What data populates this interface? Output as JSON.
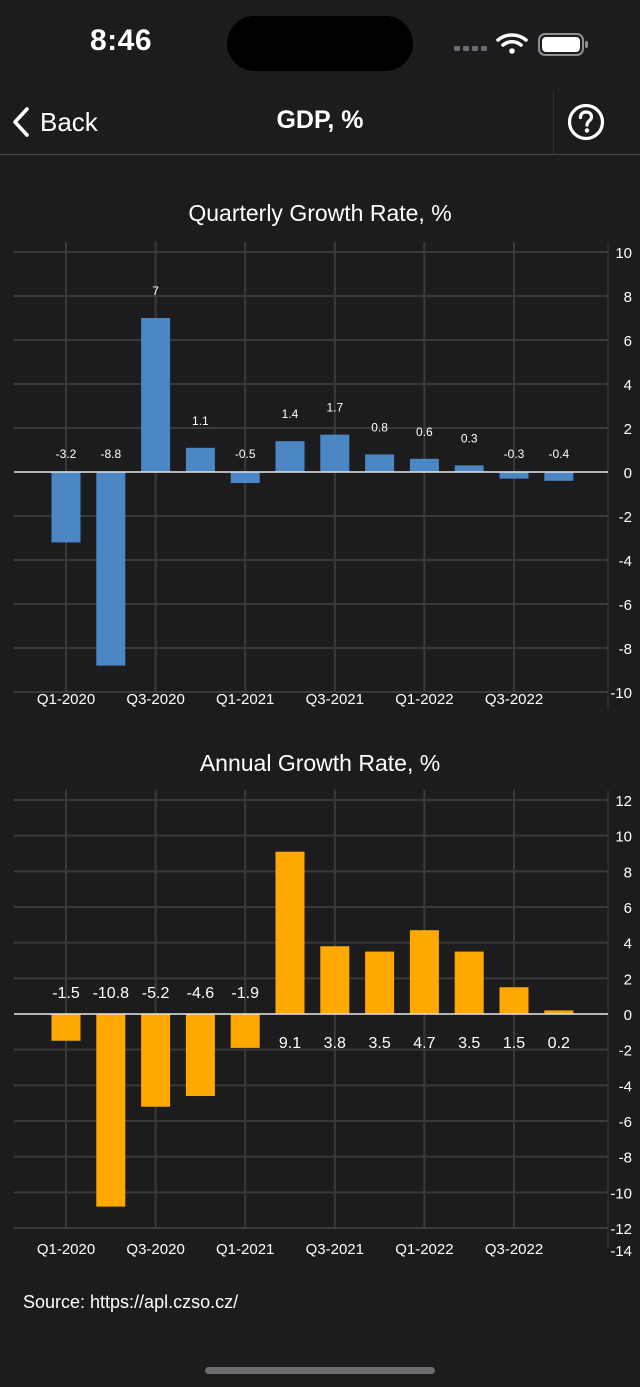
{
  "status_bar": {
    "time": "8:46"
  },
  "nav": {
    "back_label": "Back",
    "title": "GDP, %"
  },
  "source": "Source: https://apl.czso.cz/",
  "colors": {
    "background": "#1c1c1e",
    "quarterly_bar": "#4a87c4",
    "annual_bar": "#ffa800",
    "grid": "#3a3a3c"
  },
  "chart_data": [
    {
      "type": "bar",
      "title": "Quarterly Growth Rate, %",
      "categories": [
        "Q1-2020",
        "Q2-2020",
        "Q3-2020",
        "Q4-2020",
        "Q1-2021",
        "Q2-2021",
        "Q3-2021",
        "Q4-2021",
        "Q1-2022",
        "Q2-2022",
        "Q3-2022",
        "Q4-2022"
      ],
      "values": [
        -3.2,
        -8.8,
        7,
        1.1,
        -0.5,
        1.4,
        1.7,
        0.8,
        0.6,
        0.3,
        -0.3,
        -0.4
      ],
      "x_tick_labels": [
        "Q1-2020",
        "Q3-2020",
        "Q1-2021",
        "Q3-2021",
        "Q1-2022",
        "Q3-2022"
      ],
      "y_ticks": [
        10,
        8,
        6,
        4,
        2,
        0,
        -2,
        -4,
        -6,
        -8,
        -10
      ],
      "ylim": [
        -10,
        10
      ],
      "y_axis_position": "right",
      "grid": true,
      "bar_color": "#4a87c4",
      "data_labels": "top"
    },
    {
      "type": "bar",
      "title": "Annual Growth Rate, %",
      "categories": [
        "Q1-2020",
        "Q2-2020",
        "Q3-2020",
        "Q4-2020",
        "Q1-2021",
        "Q2-2021",
        "Q3-2021",
        "Q4-2021",
        "Q1-2022",
        "Q2-2022",
        "Q3-2022",
        "Q4-2022"
      ],
      "values": [
        -1.5,
        -10.8,
        -5.2,
        -4.6,
        -1.9,
        9.1,
        3.8,
        3.5,
        4.7,
        3.5,
        1.5,
        0.2
      ],
      "x_tick_labels": [
        "Q1-2020",
        "Q3-2020",
        "Q1-2021",
        "Q3-2021",
        "Q1-2022",
        "Q3-2022"
      ],
      "y_ticks": [
        12,
        10,
        8,
        6,
        4,
        2,
        0,
        -2,
        -4,
        -6,
        -8,
        -10,
        -12,
        -14
      ],
      "ylim": [
        -12,
        12
      ],
      "y_axis_position": "right",
      "grid": true,
      "bar_color": "#ffa800",
      "data_labels": "along zero line"
    }
  ]
}
